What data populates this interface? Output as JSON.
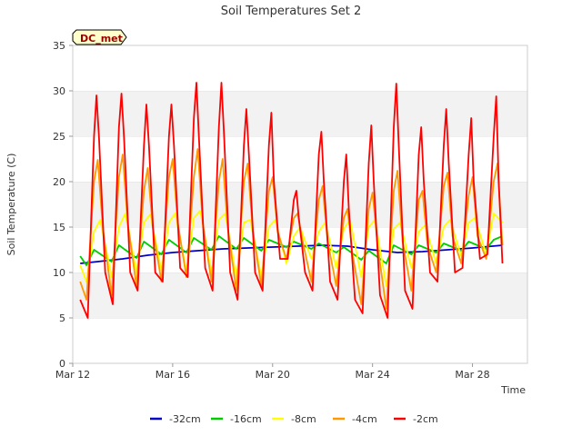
{
  "chart_data": {
    "type": "line",
    "title": "Soil Temperatures Set 2",
    "xlabel": "Time",
    "ylabel": "Soil Temperature (C)",
    "station_tag": "DC_met",
    "xlim": [
      0,
      18.2
    ],
    "ylim": [
      0,
      35
    ],
    "y_ticks": [
      0,
      5,
      10,
      15,
      20,
      25,
      30,
      35
    ],
    "x_ticks": [
      {
        "x": 0,
        "label": "Mar 12"
      },
      {
        "x": 4,
        "label": "Mar 16"
      },
      {
        "x": 8,
        "label": "Mar 20"
      },
      {
        "x": 12,
        "label": "Mar 24"
      },
      {
        "x": 16,
        "label": "Mar 28"
      }
    ],
    "grid": "horizontal bands",
    "legend_position": "bottom",
    "series": [
      {
        "name": "-32cm",
        "color": "#0000cc",
        "x": [
          0.3,
          1,
          2,
          3,
          4,
          5,
          6,
          7,
          8,
          9,
          10,
          11,
          12,
          13,
          14,
          15,
          16,
          17.2
        ],
        "y": [
          11.0,
          11.2,
          11.5,
          11.9,
          12.2,
          12.4,
          12.6,
          12.7,
          12.8,
          12.9,
          13.0,
          12.9,
          12.5,
          12.2,
          12.3,
          12.5,
          12.7,
          13.0
        ]
      },
      {
        "name": "-16cm",
        "color": "#00cc00",
        "x": [
          0.3,
          0.55,
          0.85,
          1.55,
          1.85,
          2.55,
          2.85,
          3.55,
          3.85,
          4.55,
          4.85,
          5.55,
          5.85,
          6.55,
          6.85,
          7.55,
          7.85,
          8.55,
          8.85,
          9.55,
          9.85,
          10.55,
          10.85,
          11.55,
          11.85,
          12.55,
          12.85,
          13.55,
          13.85,
          14.55,
          14.85,
          15.55,
          15.85,
          16.55,
          16.85,
          17.2
        ],
        "y": [
          11.8,
          10.8,
          12.5,
          11.2,
          13.0,
          11.6,
          13.4,
          12.0,
          13.6,
          12.2,
          13.8,
          12.5,
          14.0,
          12.6,
          13.8,
          12.4,
          13.6,
          12.8,
          13.4,
          12.6,
          13.2,
          12.2,
          12.8,
          11.4,
          12.4,
          11.0,
          13.0,
          12.0,
          13.0,
          12.2,
          13.2,
          12.4,
          13.4,
          12.6,
          13.6,
          14.0
        ]
      },
      {
        "name": "-8cm",
        "color": "#ffff00",
        "x": [
          0.3,
          0.55,
          0.85,
          1.1,
          1.55,
          1.85,
          2.1,
          2.55,
          2.85,
          3.1,
          3.55,
          3.85,
          4.1,
          4.55,
          4.85,
          5.1,
          5.55,
          5.85,
          6.1,
          6.55,
          6.85,
          7.1,
          7.55,
          7.85,
          8.1,
          8.55,
          8.85,
          9.1,
          9.55,
          9.85,
          10.1,
          10.55,
          10.85,
          11.1,
          11.55,
          11.85,
          12.1,
          12.55,
          12.85,
          13.1,
          13.55,
          13.85,
          14.1,
          14.55,
          14.85,
          15.1,
          15.55,
          15.85,
          16.1,
          16.55,
          16.85,
          17.2
        ],
        "y": [
          10.8,
          9.0,
          14.5,
          15.8,
          9.5,
          15.0,
          16.5,
          10.0,
          15.5,
          16.4,
          10.2,
          15.5,
          16.5,
          10.2,
          16.0,
          16.8,
          10.0,
          15.8,
          16.5,
          9.5,
          15.5,
          15.8,
          9.5,
          15.0,
          15.8,
          11.0,
          14.0,
          15.0,
          11.5,
          14.5,
          15.5,
          10.5,
          14.8,
          15.8,
          9.5,
          15.0,
          15.8,
          8.5,
          14.8,
          15.5,
          10.5,
          14.5,
          15.2,
          11.0,
          15.0,
          15.8,
          11.8,
          15.5,
          16.0,
          12.0,
          16.5,
          15.5
        ]
      },
      {
        "name": "-4cm",
        "color": "#ff9900",
        "x": [
          0.3,
          0.55,
          0.85,
          1.0,
          1.2,
          1.55,
          1.85,
          2.0,
          2.2,
          2.55,
          2.85,
          3.0,
          3.2,
          3.55,
          3.85,
          4.0,
          4.2,
          4.55,
          4.85,
          5.0,
          5.2,
          5.55,
          5.85,
          6.0,
          6.2,
          6.55,
          6.85,
          7.0,
          7.2,
          7.55,
          7.85,
          8.0,
          8.2,
          8.55,
          8.85,
          9.0,
          9.2,
          9.55,
          9.85,
          10.0,
          10.2,
          10.55,
          10.85,
          11.0,
          11.2,
          11.55,
          11.85,
          12.0,
          12.2,
          12.55,
          12.85,
          13.0,
          13.2,
          13.55,
          13.85,
          14.0,
          14.2,
          14.55,
          14.85,
          15.0,
          15.2,
          15.55,
          15.85,
          16.0,
          16.2,
          16.55,
          16.85,
          17.0,
          17.2
        ],
        "y": [
          9.0,
          7.0,
          20.0,
          22.4,
          15.0,
          7.5,
          20.5,
          23.0,
          15.5,
          8.5,
          19.0,
          21.5,
          15.0,
          9.0,
          20.5,
          22.5,
          15.5,
          9.5,
          20.5,
          23.6,
          15.5,
          9.0,
          20.0,
          22.5,
          15.0,
          8.0,
          20.0,
          22.0,
          14.8,
          8.5,
          19.0,
          20.5,
          14.5,
          11.5,
          16.0,
          16.5,
          13.5,
          9.0,
          18.0,
          19.5,
          13.5,
          8.5,
          16.0,
          17.0,
          12.0,
          6.5,
          17.0,
          18.8,
          13.0,
          6.0,
          19.0,
          21.2,
          13.5,
          8.0,
          18.0,
          19.0,
          13.0,
          10.0,
          19.5,
          21.0,
          14.0,
          11.0,
          18.5,
          20.5,
          14.0,
          11.5,
          20.0,
          22.0,
          13.0
        ]
      },
      {
        "name": "-2cm",
        "color": "#ff0000",
        "x": [
          0.3,
          0.6,
          0.85,
          0.95,
          1.05,
          1.3,
          1.6,
          1.85,
          1.95,
          2.05,
          2.3,
          2.6,
          2.85,
          2.95,
          3.05,
          3.3,
          3.6,
          3.85,
          3.95,
          4.05,
          4.3,
          4.6,
          4.85,
          4.95,
          5.05,
          5.3,
          5.6,
          5.85,
          5.95,
          6.05,
          6.3,
          6.6,
          6.85,
          6.95,
          7.05,
          7.3,
          7.6,
          7.85,
          7.95,
          8.05,
          8.3,
          8.6,
          8.85,
          8.95,
          9.05,
          9.3,
          9.6,
          9.85,
          9.95,
          10.05,
          10.3,
          10.6,
          10.85,
          10.95,
          11.05,
          11.3,
          11.6,
          11.85,
          11.95,
          12.05,
          12.3,
          12.6,
          12.85,
          12.95,
          13.05,
          13.3,
          13.6,
          13.85,
          13.95,
          14.05,
          14.3,
          14.6,
          14.85,
          14.95,
          15.05,
          15.3,
          15.6,
          15.85,
          15.95,
          16.05,
          16.3,
          16.6,
          16.85,
          16.95,
          17.05,
          17.2
        ],
        "y": [
          7.0,
          5.0,
          25.0,
          29.5,
          25.0,
          10.0,
          6.5,
          26.0,
          29.7,
          25.0,
          10.0,
          8.0,
          24.0,
          28.5,
          24.0,
          10.0,
          9.0,
          25.0,
          28.5,
          24.0,
          10.5,
          9.5,
          27.0,
          30.9,
          25.0,
          10.5,
          8.0,
          26.0,
          30.9,
          25.5,
          10.0,
          7.0,
          24.0,
          28.0,
          23.0,
          10.0,
          8.0,
          24.0,
          27.6,
          20.0,
          11.5,
          11.5,
          18.0,
          19.0,
          16.0,
          10.0,
          8.0,
          23.0,
          25.5,
          20.0,
          9.0,
          7.0,
          20.0,
          23.0,
          17.0,
          7.0,
          5.5,
          22.0,
          26.2,
          20.0,
          7.5,
          5.0,
          26.0,
          30.8,
          24.0,
          8.0,
          6.0,
          23.0,
          26.0,
          20.0,
          10.0,
          9.0,
          24.0,
          28.0,
          22.0,
          10.0,
          10.5,
          23.0,
          27.0,
          20.0,
          11.5,
          12.0,
          25.0,
          29.4,
          20.0,
          11.0
        ]
      }
    ]
  }
}
